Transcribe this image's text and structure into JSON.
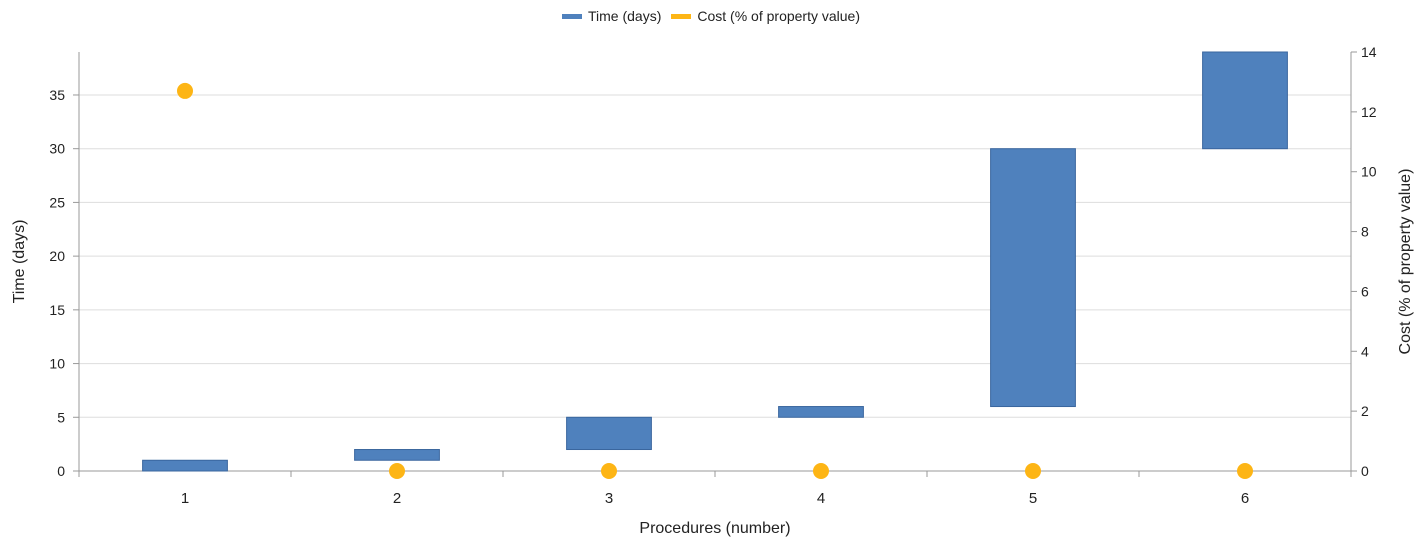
{
  "chart_data": {
    "type": "bar",
    "subtype": "floating-bar-with-markers",
    "title": "",
    "xlabel": "Procedures (number)",
    "ylabel_left": "Time (days)",
    "ylabel_right": "Cost (% of property value)",
    "categories": [
      "1",
      "2",
      "3",
      "4",
      "5",
      "6"
    ],
    "ylim_left": [
      0,
      39
    ],
    "yticks_left": [
      0,
      5,
      10,
      15,
      20,
      25,
      30,
      35
    ],
    "ylim_right": [
      0,
      14
    ],
    "yticks_right": [
      0,
      2,
      4,
      6,
      8,
      10,
      12,
      14
    ],
    "grid": "horizontal",
    "legend": "top-center",
    "series": [
      {
        "name": "Time (days)",
        "axis": "left",
        "color": "#4f81bd",
        "ranges": [
          [
            0,
            1
          ],
          [
            1,
            2
          ],
          [
            2,
            5
          ],
          [
            5,
            6
          ],
          [
            6,
            30
          ],
          [
            30,
            39
          ]
        ]
      },
      {
        "name": "Cost (% of property value)",
        "axis": "right",
        "color": "#fdb515",
        "values": [
          12.7,
          0,
          0,
          0,
          0,
          0
        ]
      }
    ]
  }
}
